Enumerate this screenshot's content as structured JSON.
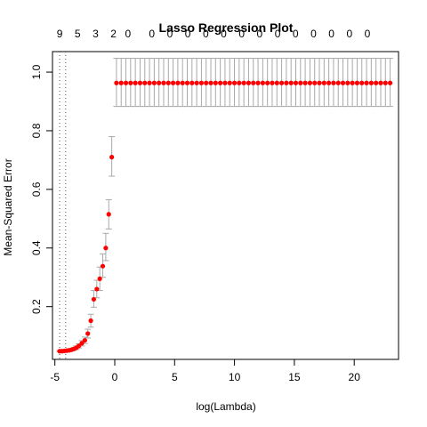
{
  "chart_data": {
    "type": "scatter",
    "title": "Lasso Regression Plot",
    "xlabel": "log(Lambda)",
    "ylabel": "Mean-Squared Error",
    "xlim": [
      -5.2,
      23.7
    ],
    "ylim": [
      0.02,
      1.07
    ],
    "x_ticks": [
      -5,
      0,
      5,
      10,
      15,
      20
    ],
    "y_ticks": [
      0.2,
      0.4,
      0.6,
      0.8,
      1.0
    ],
    "x_tick_labels": [
      "-5",
      "0",
      "5",
      "10",
      "15",
      "20"
    ],
    "y_tick_labels": [
      "0.2",
      "0.4",
      "0.6",
      "0.8",
      "1.0"
    ],
    "top_axis": {
      "x": [
        -4.6,
        -3.1,
        -1.6,
        -0.1,
        1.1,
        3.1,
        4.6,
        6.1,
        7.6,
        9.1,
        10.6,
        12.1,
        13.6,
        15.1,
        16.6,
        18.1,
        19.6,
        21.1
      ],
      "labels": [
        "9",
        "5",
        "3",
        "2",
        "0",
        "0",
        "0",
        "0",
        "0",
        "0",
        "0",
        "0",
        "0",
        "0",
        "0",
        "0",
        "0",
        "0"
      ]
    },
    "vlines": [
      -4.6,
      -4.1
    ],
    "grid": false,
    "point_color": "#ff0000",
    "errorbar_color": "#a9a9a9",
    "series": [
      {
        "points": [
          {
            "x": -4.6,
            "y": 0.048,
            "lo": 0.046,
            "hi": 0.05
          },
          {
            "x": -4.4,
            "y": 0.048,
            "lo": 0.046,
            "hi": 0.05
          },
          {
            "x": -4.2,
            "y": 0.049,
            "lo": 0.047,
            "hi": 0.051
          },
          {
            "x": -4.0,
            "y": 0.05,
            "lo": 0.047,
            "hi": 0.053
          },
          {
            "x": -3.8,
            "y": 0.051,
            "lo": 0.048,
            "hi": 0.054
          },
          {
            "x": -3.6,
            "y": 0.053,
            "lo": 0.049,
            "hi": 0.057
          },
          {
            "x": -3.4,
            "y": 0.056,
            "lo": 0.051,
            "hi": 0.061
          },
          {
            "x": -3.2,
            "y": 0.06,
            "lo": 0.054,
            "hi": 0.066
          },
          {
            "x": -3.0,
            "y": 0.066,
            "lo": 0.059,
            "hi": 0.073
          },
          {
            "x": -2.75,
            "y": 0.075,
            "lo": 0.066,
            "hi": 0.084
          },
          {
            "x": -2.5,
            "y": 0.085,
            "lo": 0.074,
            "hi": 0.096
          },
          {
            "x": -2.25,
            "y": 0.108,
            "lo": 0.093,
            "hi": 0.123
          },
          {
            "x": -2.0,
            "y": 0.152,
            "lo": 0.13,
            "hi": 0.174
          },
          {
            "x": -1.75,
            "y": 0.225,
            "lo": 0.198,
            "hi": 0.255
          },
          {
            "x": -1.5,
            "y": 0.26,
            "lo": 0.23,
            "hi": 0.29
          },
          {
            "x": -1.25,
            "y": 0.295,
            "lo": 0.255,
            "hi": 0.335
          },
          {
            "x": -1.0,
            "y": 0.338,
            "lo": 0.3,
            "hi": 0.38
          },
          {
            "x": -0.75,
            "y": 0.4,
            "lo": 0.357,
            "hi": 0.45
          },
          {
            "x": -0.5,
            "y": 0.515,
            "lo": 0.465,
            "hi": 0.565
          },
          {
            "x": -0.25,
            "y": 0.71,
            "lo": 0.645,
            "hi": 0.78
          }
        ],
        "flat": {
          "x_start": -0.25,
          "x_end": 23.0,
          "count": 60,
          "y": 0.963,
          "lo": 0.883,
          "hi": 1.047
        }
      }
    ]
  }
}
